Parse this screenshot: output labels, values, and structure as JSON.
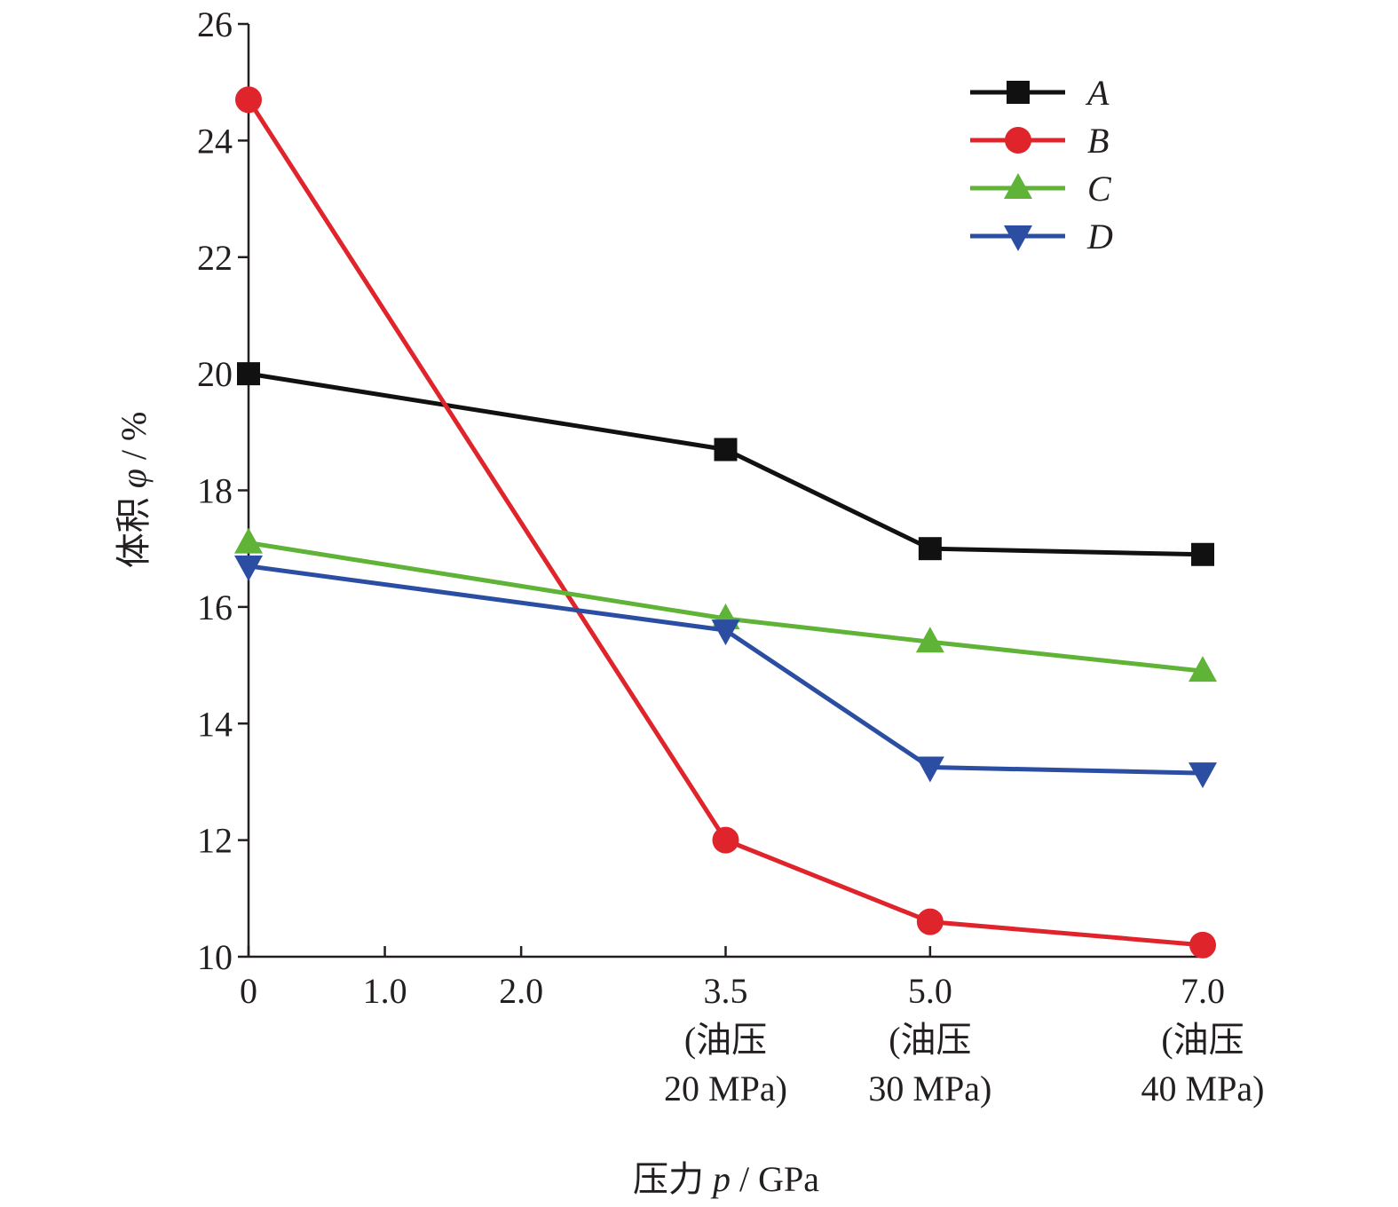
{
  "chart_data": {
    "type": "line",
    "x": [
      0,
      3.5,
      5.0,
      7.0
    ],
    "x_ticks": [
      {
        "value": 0,
        "lines": [
          "0"
        ]
      },
      {
        "value": 1.0,
        "lines": [
          "1.0"
        ]
      },
      {
        "value": 2.0,
        "lines": [
          "2.0"
        ]
      },
      {
        "value": 3.5,
        "lines": [
          "3.5",
          "(油压",
          "20 MPa)"
        ]
      },
      {
        "value": 5.0,
        "lines": [
          "5.0",
          "(油压",
          "30 MPa)"
        ]
      },
      {
        "value": 7.0,
        "lines": [
          "7.0",
          "(油压",
          "40 MPa)"
        ]
      }
    ],
    "y_ticks": [
      10,
      12,
      14,
      16,
      18,
      20,
      22,
      24,
      26
    ],
    "xlim": [
      0,
      7.0
    ],
    "ylim": [
      10,
      26
    ],
    "xlabel": {
      "prefix": "压力 ",
      "symbol": "p",
      "suffix": " / GPa"
    },
    "ylabel": {
      "prefix": "体积 ",
      "symbol": "φ",
      "suffix": " / %"
    },
    "grid": false,
    "legend_position": "top-right",
    "series": [
      {
        "name": "A",
        "values": [
          20.0,
          18.7,
          17.0,
          16.9
        ],
        "color": "#111111",
        "marker": "square"
      },
      {
        "name": "B",
        "values": [
          24.7,
          12.0,
          10.6,
          10.2
        ],
        "color": "#e0242b",
        "marker": "circle"
      },
      {
        "name": "C",
        "values": [
          17.1,
          15.8,
          15.4,
          14.9
        ],
        "color": "#5fb336",
        "marker": "triangle-up"
      },
      {
        "name": "D",
        "values": [
          16.7,
          15.6,
          13.25,
          13.15
        ],
        "color": "#2b4ea3",
        "marker": "triangle-down"
      }
    ]
  }
}
